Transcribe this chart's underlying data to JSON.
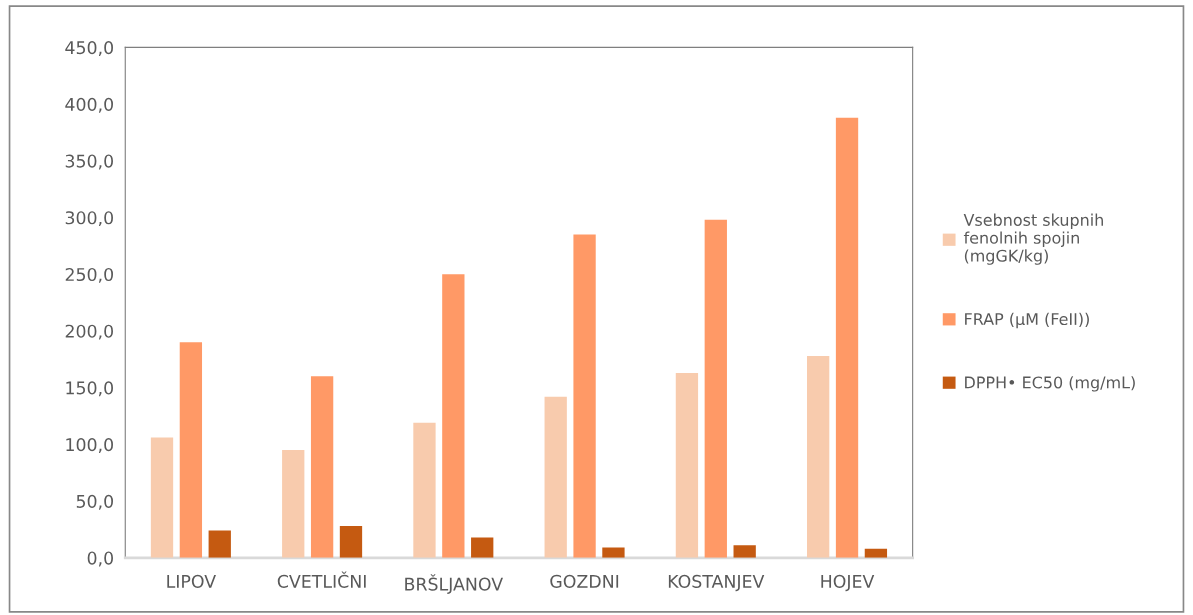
{
  "chart_data": {
    "type": "bar",
    "categories": [
      "LIPOV",
      "CVETLIČNI",
      "BRŠLJANOV",
      "GOZDNI",
      "KOSTANJEV",
      "HOJEV"
    ],
    "series": [
      {
        "name": "Vsebnost skupnih fenolnih spojin (mgGK/kg)",
        "color": "#f8cbad",
        "values": [
          106,
          95,
          119,
          142,
          163,
          178
        ]
      },
      {
        "name": "FRAP (µM (FeII))",
        "color": "#ff9966",
        "values": [
          190,
          160,
          250,
          285,
          298,
          388
        ]
      },
      {
        "name": "DPPH• EC50 (mg/mL)",
        "color": "#c55a11",
        "values": [
          24,
          28,
          18,
          9,
          11,
          8
        ]
      }
    ],
    "ylim": [
      0,
      450
    ],
    "yticks": [
      {
        "value": 0,
        "label": "0,0"
      },
      {
        "value": 50,
        "label": "50,0"
      },
      {
        "value": 100,
        "label": "100,0"
      },
      {
        "value": 150,
        "label": "150,0"
      },
      {
        "value": 200,
        "label": "200,0"
      },
      {
        "value": 250,
        "label": "250,0"
      },
      {
        "value": 300,
        "label": "300,0"
      },
      {
        "value": 350,
        "label": "350,0"
      },
      {
        "value": 400,
        "label": "400,0"
      },
      {
        "value": 450,
        "label": "450,0"
      }
    ],
    "grid": false,
    "legend": "right"
  }
}
